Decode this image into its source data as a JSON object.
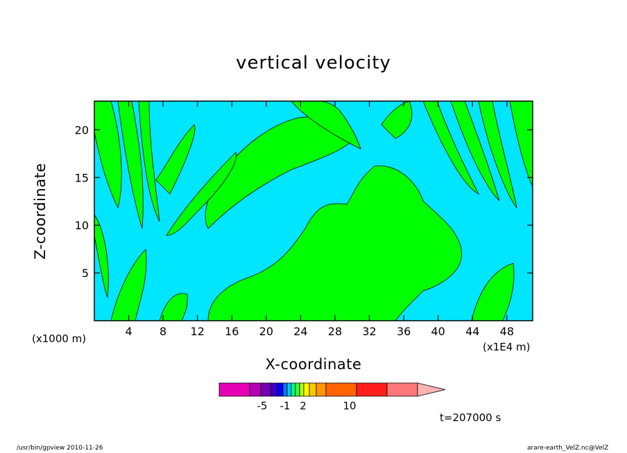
{
  "chart_data": {
    "type": "heatmap",
    "title": "vertical velocity",
    "xlabel": "X-coordinate",
    "ylabel": "Z-coordinate",
    "x_unit_left": "(x1000 m)",
    "x_unit_right": "(x1E4 m)",
    "xlim": [
      0,
      51
    ],
    "ylim": [
      0,
      23
    ],
    "x_ticks": [
      "4",
      "8",
      "12",
      "16",
      "20",
      "24",
      "28",
      "32",
      "36",
      "40",
      "44",
      "48"
    ],
    "y_ticks": [
      "5",
      "10",
      "15",
      "20"
    ],
    "colorbar": {
      "labels": [
        "-5",
        "-1",
        "2",
        "10"
      ],
      "colors": [
        "#e600b4",
        "#b400b4",
        "#7800b4",
        "#3c00c8",
        "#0000ff",
        "#0078ff",
        "#00c8ff",
        "#00ff78",
        "#3cff3c",
        "#b4ff00",
        "#ffff00",
        "#ffc800",
        "#ff9600",
        "#ff6400",
        "#ff1e1e",
        "#ff7878",
        "#ffb4b4"
      ]
    },
    "field_colors": {
      "negative": "#00e6ff",
      "positive": "#00ff00"
    },
    "time_label": "t=207000 s",
    "grid": false
  },
  "footer": {
    "left": "/usr/bin/gpview   2010-11-26",
    "right": "arare-earth_VelZ.nc@VelZ"
  }
}
